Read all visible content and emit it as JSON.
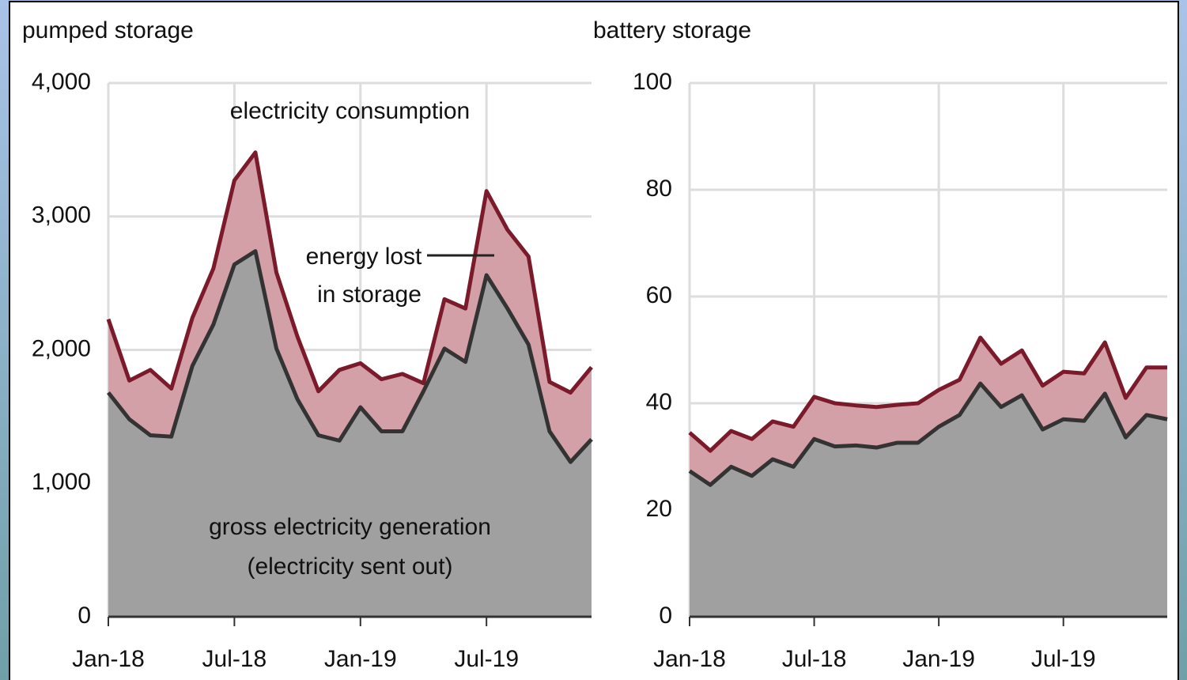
{
  "chart_data": [
    {
      "type": "area",
      "title": "pumped storage",
      "categories": [
        "Jan-18",
        null,
        null,
        null,
        null,
        null,
        "Jul-18",
        null,
        null,
        null,
        null,
        null,
        "Jan-19",
        null,
        null,
        null,
        null,
        null,
        "Jul-19",
        null,
        null,
        null,
        null,
        null
      ],
      "series": [
        {
          "name": "electricity consumption",
          "color": "#7b1a2a",
          "fill": "#d4a0a8",
          "values": [
            2230,
            1770,
            1850,
            1710,
            2240,
            2610,
            3270,
            3480,
            2580,
            2100,
            1690,
            1850,
            1900,
            1780,
            1820,
            1750,
            2380,
            2310,
            3190,
            2900,
            2700,
            1760,
            1680,
            1870
          ]
        },
        {
          "name": "gross electricity generation",
          "color": "#333333",
          "fill": "#a0a0a0",
          "values": [
            1680,
            1480,
            1360,
            1350,
            1880,
            2190,
            2640,
            2740,
            2010,
            1630,
            1360,
            1320,
            1570,
            1390,
            1390,
            1690,
            2010,
            1910,
            2560,
            2310,
            2040,
            1390,
            1160,
            1330
          ]
        }
      ],
      "annotations": [
        "energy lost",
        "in storage",
        "(electricity sent out)"
      ],
      "ylim": [
        0,
        4000
      ],
      "yticks": [
        0,
        {
          "value": 1000,
          "label": "1,000"
        },
        {
          "value": 2000,
          "label": "2,000"
        },
        {
          "value": 3000,
          "label": "3,000"
        },
        {
          "value": 4000,
          "label": "4,000"
        }
      ],
      "grid": true
    },
    {
      "type": "area",
      "title": "battery storage",
      "categories": [
        "Jan-18",
        null,
        null,
        null,
        null,
        null,
        "Jul-18",
        null,
        null,
        null,
        null,
        null,
        "Jan-19",
        null,
        null,
        null,
        null,
        null,
        "Jul-19",
        null,
        null,
        null,
        null,
        null
      ],
      "series": [
        {
          "color": "#7b1a2a",
          "fill": "#d4a0a8",
          "values": [
            34.5,
            31.1,
            34.8,
            33.3,
            36.6,
            35.6,
            41.2,
            40,
            39.6,
            39.3,
            39.7,
            40,
            42.5,
            44.4,
            52.3,
            47.4,
            49.9,
            43.3,
            45.9,
            45.6,
            51.4,
            41,
            46.7,
            46.7
          ]
        },
        {
          "color": "#333333",
          "fill": "#a0a0a0",
          "values": [
            27.3,
            24.7,
            28.1,
            26.4,
            29.5,
            28.1,
            33.3,
            31.9,
            32.1,
            31.7,
            32.6,
            32.6,
            35.6,
            37.8,
            43.7,
            39.3,
            41.5,
            35.1,
            37,
            36.7,
            41.8,
            33.6,
            37.8,
            37
          ]
        }
      ],
      "ylim": [
        0,
        100
      ],
      "yticks": [
        0,
        20,
        40,
        60,
        80,
        100
      ],
      "grid": true
    }
  ]
}
